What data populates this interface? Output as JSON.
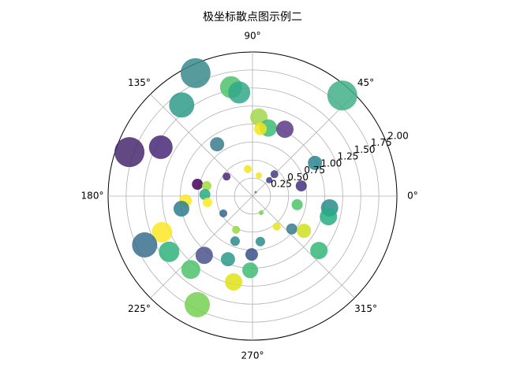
{
  "chart_data": {
    "type": "scatter",
    "polar": true,
    "title": "极坐标散点图示例二",
    "x": [
      114.8,
      48.3,
      101.1,
      97.3,
      127.8,
      160.3,
      151.9,
      85.4,
      76.9,
      64.2,
      83.3,
      124.3,
      28.0,
      100.0,
      72.9,
      45.0,
      43.6,
      142.9,
      11.8,
      167.9,
      167.4,
      178.1,
      184.0,
      188.0,
      190.1,
      210.7,
      51.3,
      297.6,
      349.1,
      351.3,
      344.8,
      308.5,
      320.0,
      325.9,
      201.8,
      244.0,
      204.4,
      213.8,
      248.9,
      279.8,
      320.6,
      230.9,
      269.2,
      248.8,
      230.0,
      268.2,
      257.6,
      243.1
    ],
    "values": [
      1.88,
      1.87,
      1.54,
      1.45,
      1.6,
      1.81,
      1.44,
      1.1,
      0.97,
      1.03,
      0.94,
      0.87,
      0.98,
      0.38,
      0.3,
      0.43,
      0.32,
      0.45,
      0.69,
      0.78,
      0.65,
      0.66,
      0.93,
      0.63,
      1.0,
      0.47,
      0.07,
      0.26,
      0.63,
      1.08,
      1.09,
      0.54,
      0.71,
      0.86,
      1.35,
      0.52,
      1.64,
      1.39,
      0.67,
      0.64,
      1.19,
      1.06,
      0.81,
      0.94,
      1.33,
      1.03,
      1.22,
      1.69
    ],
    "sizes": [
      750,
      750,
      407,
      407,
      530,
      750,
      467,
      251,
      251,
      251,
      133,
      168,
      168,
      52,
      33,
      52,
      33,
      52,
      102,
      102,
      75,
      102,
      133,
      75,
      208,
      52,
      5,
      19,
      102,
      251,
      251,
      52,
      102,
      168,
      351,
      52,
      530,
      351,
      75,
      75,
      251,
      251,
      133,
      168,
      299,
      208,
      251,
      530
    ],
    "colors": [
      "#3b8a8c",
      "#42b08a",
      "#4fc26b",
      "#31a88a",
      "#2f9b8a",
      "#46296e",
      "#482878",
      "#a3d64a",
      "#3dbc74",
      "#5a3a86",
      "#f2e51d",
      "#3a7b8e",
      "#2b848e",
      "#f2e51d",
      "#f2e51d",
      "#433e85",
      "#433e85",
      "#482476",
      "#472f7d",
      "#44015a",
      "#a0da39",
      "#26ad81",
      "#fde725",
      "#fde725",
      "#2e7d8e",
      "#32658e",
      "#2c8c8c",
      "#7ad151",
      "#4ec36b",
      "#2c8c8c",
      "#27ad81",
      "#e5e419",
      "#3a7b8e",
      "#cde11d",
      "#fde725",
      "#98d83e",
      "#3a6f8e",
      "#30b37a",
      "#2d8a8d",
      "#2c8c8c",
      "#35b779",
      "#4b528a",
      "#3b528b",
      "#2a9a89",
      "#4ec26b",
      "#3fbc73",
      "#dfe318",
      "#75d054"
    ],
    "xlim": [
      0,
      360
    ],
    "xticks": [
      {
        "value": 0,
        "label": "0°"
      },
      {
        "value": 45,
        "label": "45°"
      },
      {
        "value": 90,
        "label": "90°"
      },
      {
        "value": 135,
        "label": "135°"
      },
      {
        "value": 180,
        "label": "180°"
      },
      {
        "value": 225,
        "label": "225°"
      },
      {
        "value": 270,
        "label": "270°"
      },
      {
        "value": 315,
        "label": "315°"
      }
    ],
    "ylim": [
      0,
      2
    ],
    "yticks": [
      0.25,
      {
        "value": 0.5,
        "label": "0.50"
      },
      0.75,
      {
        "value": 1,
        "label": "1.00"
      },
      1.25,
      {
        "value": 1.5,
        "label": "1.50"
      },
      1.75,
      {
        "value": 2,
        "label": "2.00"
      }
    ],
    "grid": true
  }
}
